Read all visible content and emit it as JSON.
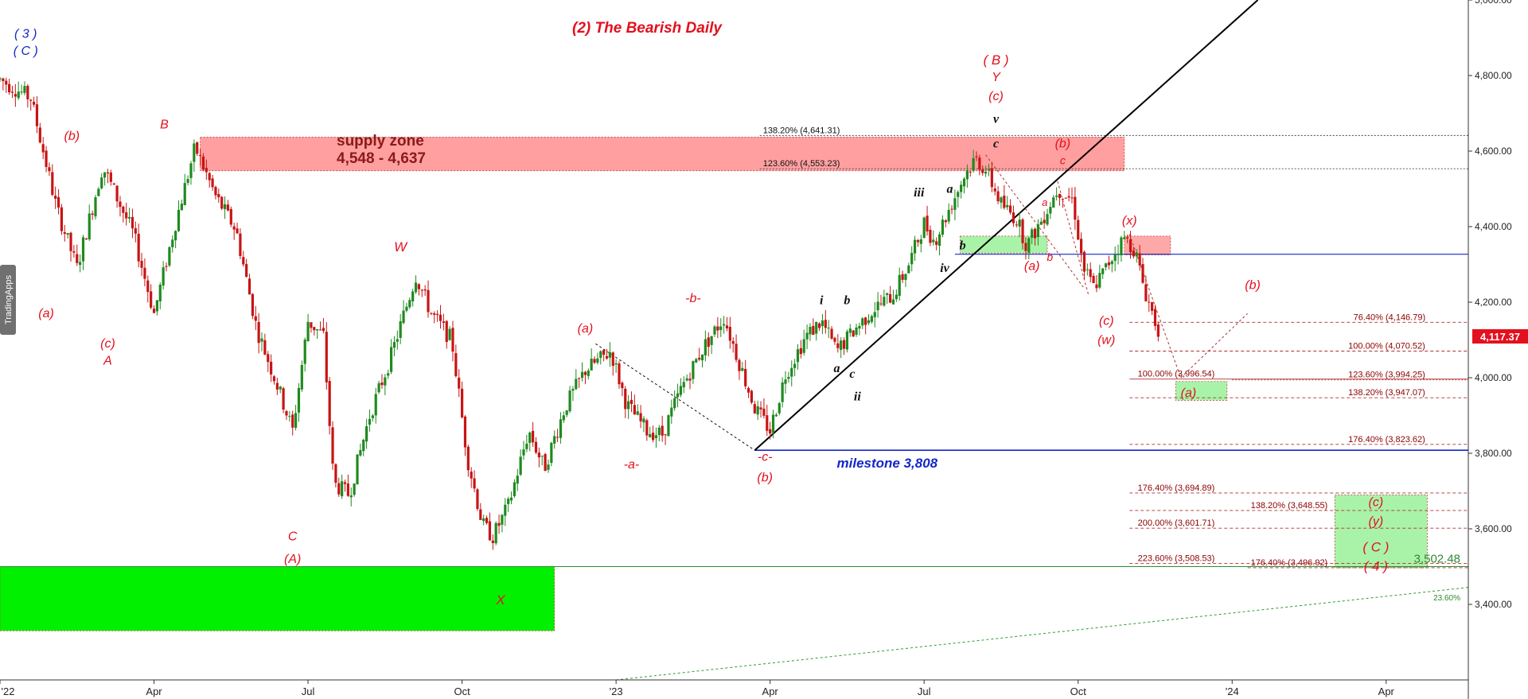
{
  "chart_data": {
    "type": "candlestick",
    "title": "(2) The Bearish Daily",
    "watermark": "TradingApps",
    "current_price": "4,117.37",
    "ylim": [
      3200,
      5000
    ],
    "y_ticks": [
      "5,000.00",
      "4,800.00",
      "4,600.00",
      "4,400.00",
      "4,200.00",
      "4,000.00",
      "3,800.00",
      "3,600.00",
      "3,400.00"
    ],
    "y_tick_values": [
      5000,
      4800,
      4600,
      4400,
      4200,
      4000,
      3800,
      3600,
      3400
    ],
    "x_ticks": [
      "'22",
      "Apr",
      "Jul",
      "Oct",
      "'23",
      "Apr",
      "Jul",
      "Oct",
      "'24",
      "Apr"
    ],
    "x_tick_months": [
      0,
      3,
      6,
      9,
      12,
      15,
      18,
      21,
      24,
      27
    ],
    "x_range_months": [
      0,
      28.6
    ],
    "price_path": [
      [
        0.0,
        4790
      ],
      [
        0.6,
        4740
      ],
      [
        1.1,
        4450
      ],
      [
        1.5,
        4290
      ],
      [
        2.0,
        4560
      ],
      [
        2.6,
        4380
      ],
      [
        3.0,
        4170
      ],
      [
        3.4,
        4400
      ],
      [
        3.8,
        4610
      ],
      [
        4.2,
        4480
      ],
      [
        4.6,
        4390
      ],
      [
        5.0,
        4130
      ],
      [
        5.4,
        3980
      ],
      [
        5.7,
        3860
      ],
      [
        6.0,
        4150
      ],
      [
        6.3,
        4110
      ],
      [
        6.5,
        3720
      ],
      [
        6.8,
        3690
      ],
      [
        7.2,
        3900
      ],
      [
        7.6,
        4050
      ],
      [
        8.1,
        4270
      ],
      [
        8.4,
        4170
      ],
      [
        8.8,
        4100
      ],
      [
        9.1,
        3790
      ],
      [
        9.4,
        3610
      ],
      [
        9.6,
        3580
      ],
      [
        9.9,
        3660
      ],
      [
        10.3,
        3860
      ],
      [
        10.6,
        3760
      ],
      [
        11.0,
        3920
      ],
      [
        11.4,
        4020
      ],
      [
        11.9,
        4070
      ],
      [
        12.2,
        3930
      ],
      [
        12.6,
        3860
      ],
      [
        12.9,
        3850
      ],
      [
        13.3,
        3980
      ],
      [
        13.7,
        4080
      ],
      [
        14.1,
        4160
      ],
      [
        14.4,
        4040
      ],
      [
        14.7,
        3920
      ],
      [
        15.0,
        3860
      ],
      [
        15.3,
        4010
      ],
      [
        15.7,
        4110
      ],
      [
        16.0,
        4150
      ],
      [
        16.3,
        4070
      ],
      [
        16.6,
        4120
      ],
      [
        17.0,
        4180
      ],
      [
        17.4,
        4220
      ],
      [
        17.7,
        4300
      ],
      [
        18.0,
        4410
      ],
      [
        18.2,
        4360
      ],
      [
        18.5,
        4450
      ],
      [
        18.8,
        4540
      ],
      [
        19.0,
        4580
      ],
      [
        19.2,
        4550
      ],
      [
        19.5,
        4460
      ],
      [
        19.8,
        4420
      ],
      [
        20.0,
        4350
      ],
      [
        20.3,
        4420
      ],
      [
        20.6,
        4500
      ],
      [
        20.9,
        4470
      ],
      [
        21.1,
        4290
      ],
      [
        21.3,
        4240
      ],
      [
        21.5,
        4280
      ],
      [
        21.7,
        4330
      ],
      [
        21.9,
        4370
      ],
      [
        22.1,
        4340
      ],
      [
        22.3,
        4230
      ],
      [
        22.5,
        4150
      ],
      [
        22.6,
        4117
      ]
    ],
    "zones": [
      {
        "name": "supply-zone",
        "label": "supply zone",
        "sublabel": "4,548 - 4,637",
        "x0": 3.9,
        "x1": 21.9,
        "y0": 4548,
        "y1": 4637,
        "color": "#ff9f9f"
      },
      {
        "name": "green-b-zone",
        "x0": 18.7,
        "x1": 20.4,
        "y0": 4330,
        "y1": 4375,
        "color": "#a9f3a9"
      },
      {
        "name": "red-x-zone",
        "x0": 21.9,
        "x1": 22.8,
        "y0": 4325,
        "y1": 4375,
        "color": "#ffa8a8"
      },
      {
        "name": "green-a-target-zone",
        "x0": 22.9,
        "x1": 23.9,
        "y0": 3940,
        "y1": 3990,
        "color": "#a9f3a9"
      },
      {
        "name": "green-c4-target-zone",
        "x0": 26.0,
        "x1": 27.8,
        "y0": 3497,
        "y1": 3690,
        "color": "#a9f3a9"
      },
      {
        "name": "green-bottom-zone",
        "x0": 0.0,
        "x1": 10.8,
        "y0": 3330,
        "y1": 3500,
        "color": "#00f000"
      }
    ],
    "levels": [
      {
        "label": "138.20% (4,641.31)",
        "value": 4641.31,
        "x0": 14.8,
        "x1": 28.6,
        "label_x": 14.8,
        "style": "dotted",
        "color": "#444",
        "cls": "fib-blk"
      },
      {
        "label": "123.60% (4,553.23)",
        "value": 4553.23,
        "x0": 14.8,
        "x1": 28.6,
        "label_x": 14.8,
        "style": "dotted",
        "color": "#444",
        "cls": "fib-blk"
      },
      {
        "label": "76.40% (4,146.79)",
        "value": 4146.79,
        "x0": 22.0,
        "x1": 28.6,
        "label_x": 26.3,
        "style": "dashed",
        "color": "#b03030",
        "cls": "fib"
      },
      {
        "label": "100.00% (4,070.52)",
        "value": 4070.52,
        "x0": 22.0,
        "x1": 28.6,
        "label_x": 26.2,
        "style": "dashed",
        "color": "#b03030",
        "cls": "fib"
      },
      {
        "label": "100.00% (3,996.54)",
        "value": 3996.54,
        "x0": 22.0,
        "x1": 28.6,
        "label_x": 22.1,
        "style": "solid",
        "color": "#b03030",
        "cls": "fib"
      },
      {
        "label": "123.60% (3,994.25)",
        "value": 3994.25,
        "x0": 24.0,
        "x1": 28.6,
        "label_x": 26.2,
        "style": "dotted",
        "color": "#b03030",
        "cls": "fib"
      },
      {
        "label": "138.20% (3,947.07)",
        "value": 3947.07,
        "x0": 22.0,
        "x1": 28.6,
        "label_x": 26.2,
        "style": "dashed",
        "color": "#b03030",
        "cls": "fib"
      },
      {
        "label": "176.40% (3,823.62)",
        "value": 3823.62,
        "x0": 22.0,
        "x1": 28.6,
        "label_x": 26.2,
        "style": "dashed",
        "color": "#b03030",
        "cls": "fib"
      },
      {
        "label": "176.40% (3,694.89)",
        "value": 3694.89,
        "x0": 22.0,
        "x1": 28.6,
        "label_x": 22.1,
        "style": "dashed",
        "color": "#b03030",
        "cls": "fib"
      },
      {
        "label": "138.20% (3,648.55)",
        "value": 3648.55,
        "x0": 22.0,
        "x1": 28.6,
        "label_x": 24.3,
        "style": "dashed",
        "color": "#b03030",
        "cls": "fib"
      },
      {
        "label": "200.00% (3,601.71)",
        "value": 3601.71,
        "x0": 22.0,
        "x1": 28.6,
        "label_x": 22.1,
        "style": "dashed",
        "color": "#b03030",
        "cls": "fib"
      },
      {
        "label": "223.60% (3,508.53)",
        "value": 3508.53,
        "x0": 22.0,
        "x1": 28.6,
        "label_x": 22.1,
        "style": "dashed",
        "color": "#b03030",
        "cls": "fib"
      },
      {
        "label": "176.40% (3,496.92)",
        "value": 3496.92,
        "x0": 24.3,
        "x1": 28.6,
        "label_x": 24.3,
        "style": "dashed",
        "color": "#b03030",
        "cls": "fib"
      }
    ],
    "solid_lines": [
      {
        "name": "blue-resistance-line",
        "x0": 18.6,
        "x1": 28.6,
        "y0": 4327,
        "y1": 4327,
        "color": "#1428c8",
        "width": 1.2
      },
      {
        "name": "milestone-line",
        "x0": 14.7,
        "x1": 28.6,
        "y0": 3808,
        "y1": 3808,
        "color": "#1428c8",
        "width": 1.6
      },
      {
        "name": "bottom-support-line",
        "x0": 0.0,
        "x1": 28.6,
        "y0": 3500,
        "y1": 3500,
        "color": "#2e8b2e",
        "width": 1
      },
      {
        "name": "black-trendline",
        "x0": 14.7,
        "x1": 24.5,
        "y0": 3808,
        "y1": 5000,
        "color": "#000",
        "width": 2
      },
      {
        "name": "green-long-trendline",
        "x0": 12.0,
        "x1": 28.6,
        "y0": 3200,
        "y1": 3445,
        "color": "#2e9b2e",
        "width": 1,
        "dash": "3,3"
      },
      {
        "name": "dashed-a-to-c",
        "x0": 11.6,
        "x1": 14.7,
        "y0": 4090,
        "y1": 3808,
        "color": "#111",
        "width": 1,
        "dash": "3,3"
      },
      {
        "name": "dashed-top-down-1",
        "x0": 19.2,
        "x1": 21.1,
        "y0": 4590,
        "y1": 4240,
        "color": "#b03030",
        "width": 1,
        "dash": "3,3"
      },
      {
        "name": "dashed-top-down-2",
        "x0": 20.6,
        "x1": 21.2,
        "y0": 4520,
        "y1": 4220,
        "color": "#b03030",
        "width": 1,
        "dash": "3,3"
      },
      {
        "name": "dashed-x-to-a",
        "x0": 22.0,
        "x1": 23.0,
        "y0": 4380,
        "y1": 4000,
        "color": "#b03030",
        "width": 1,
        "dash": "3,3"
      },
      {
        "name": "dashed-a-to-b",
        "x0": 23.0,
        "x1": 24.3,
        "y0": 4000,
        "y1": 4170,
        "color": "#b03030",
        "width": 1,
        "dash": "3,3"
      }
    ],
    "wave_labels": [
      {
        "t": "( 3 )",
        "x": 0.5,
        "y": 4900,
        "c": "wave-blue",
        "s": 16
      },
      {
        "t": "( C )",
        "x": 0.5,
        "y": 4855,
        "c": "wave-blue",
        "s": 16
      },
      {
        "t": "(b)",
        "x": 1.4,
        "y": 4630,
        "c": "wave-red",
        "s": 16
      },
      {
        "t": "(a)",
        "x": 0.9,
        "y": 4160,
        "c": "wave-red",
        "s": 16
      },
      {
        "t": "(c)",
        "x": 2.1,
        "y": 4080,
        "c": "wave-red",
        "s": 16
      },
      {
        "t": "A",
        "x": 2.1,
        "y": 4035,
        "c": "wave-red",
        "s": 16
      },
      {
        "t": "B",
        "x": 3.2,
        "y": 4660,
        "c": "wave-red",
        "s": 16
      },
      {
        "t": "W",
        "x": 7.8,
        "y": 4335,
        "c": "wave-red",
        "s": 17
      },
      {
        "t": "C",
        "x": 5.7,
        "y": 3570,
        "c": "wave-red",
        "s": 16
      },
      {
        "t": "(A)",
        "x": 5.7,
        "y": 3510,
        "c": "wave-red",
        "s": 16
      },
      {
        "t": "X",
        "x": 9.75,
        "y": 3400,
        "c": "wave-red",
        "s": 17
      },
      {
        "t": "(a)",
        "x": 11.4,
        "y": 4120,
        "c": "wave-red",
        "s": 16
      },
      {
        "t": "-a-",
        "x": 12.3,
        "y": 3760,
        "c": "wave-red",
        "s": 16
      },
      {
        "t": "-b-",
        "x": 13.5,
        "y": 4200,
        "c": "wave-red",
        "s": 16
      },
      {
        "t": "-c-",
        "x": 14.9,
        "y": 3780,
        "c": "wave-red",
        "s": 16
      },
      {
        "t": "(b)",
        "x": 14.9,
        "y": 3725,
        "c": "wave-red",
        "s": 16
      },
      {
        "t": "i",
        "x": 16.0,
        "y": 4195,
        "c": "wave-blk",
        "s": 16
      },
      {
        "t": "b",
        "x": 16.5,
        "y": 4195,
        "c": "wave-blk",
        "s": 16
      },
      {
        "t": "a",
        "x": 16.3,
        "y": 4015,
        "c": "wave-blk",
        "s": 16
      },
      {
        "t": "c",
        "x": 16.6,
        "y": 4000,
        "c": "wave-blk",
        "s": 16
      },
      {
        "t": "ii",
        "x": 16.7,
        "y": 3940,
        "c": "wave-blk",
        "s": 16
      },
      {
        "t": "iii",
        "x": 17.9,
        "y": 4480,
        "c": "wave-blk",
        "s": 16
      },
      {
        "t": "a",
        "x": 18.5,
        "y": 4490,
        "c": "wave-blk",
        "s": 16
      },
      {
        "t": "b",
        "x": 18.75,
        "y": 4340,
        "c": "wave-blk",
        "s": 16
      },
      {
        "t": "iv",
        "x": 18.4,
        "y": 4280,
        "c": "wave-blk",
        "s": 16
      },
      {
        "t": "( B )",
        "x": 19.4,
        "y": 4830,
        "c": "wave-red",
        "s": 17
      },
      {
        "t": "Y",
        "x": 19.4,
        "y": 4785,
        "c": "wave-red",
        "s": 16
      },
      {
        "t": "(c)",
        "x": 19.4,
        "y": 4735,
        "c": "wave-red",
        "s": 16
      },
      {
        "t": "v",
        "x": 19.4,
        "y": 4675,
        "c": "wave-blk",
        "s": 16
      },
      {
        "t": "c",
        "x": 19.4,
        "y": 4610,
        "c": "wave-blk",
        "s": 16
      },
      {
        "t": "(b)",
        "x": 20.7,
        "y": 4610,
        "c": "wave-red",
        "s": 16
      },
      {
        "t": "c",
        "x": 20.7,
        "y": 4565,
        "c": "wave-red",
        "s": 14
      },
      {
        "t": "a",
        "x": 20.35,
        "y": 4455,
        "c": "wave-red",
        "s": 13
      },
      {
        "t": "b",
        "x": 20.45,
        "y": 4310,
        "c": "wave-red",
        "s": 14
      },
      {
        "t": "(a)",
        "x": 20.1,
        "y": 4285,
        "c": "wave-red",
        "s": 16
      },
      {
        "t": "(c)",
        "x": 21.55,
        "y": 4140,
        "c": "wave-red",
        "s": 16
      },
      {
        "t": "(w)",
        "x": 21.55,
        "y": 4090,
        "c": "wave-red",
        "s": 16
      },
      {
        "t": "(x)",
        "x": 22.0,
        "y": 4405,
        "c": "wave-red",
        "s": 16
      },
      {
        "t": "(b)",
        "x": 24.4,
        "y": 4235,
        "c": "wave-red",
        "s": 16
      },
      {
        "t": "(a)",
        "x": 23.15,
        "y": 3950,
        "c": "wave-red",
        "s": 16
      },
      {
        "t": "(c)",
        "x": 26.8,
        "y": 3660,
        "c": "wave-red",
        "s": 16
      },
      {
        "t": "(y)",
        "x": 26.8,
        "y": 3610,
        "c": "wave-red",
        "s": 16
      },
      {
        "t": "( C )",
        "x": 26.8,
        "y": 3540,
        "c": "wave-red",
        "s": 17
      },
      {
        "t": "( 4 )",
        "x": 26.8,
        "y": 3490,
        "c": "wave-red",
        "s": 17
      }
    ],
    "milestone_label": "milestone 3,808",
    "support_label": "3,502.48",
    "trend_label": "23.60%"
  }
}
